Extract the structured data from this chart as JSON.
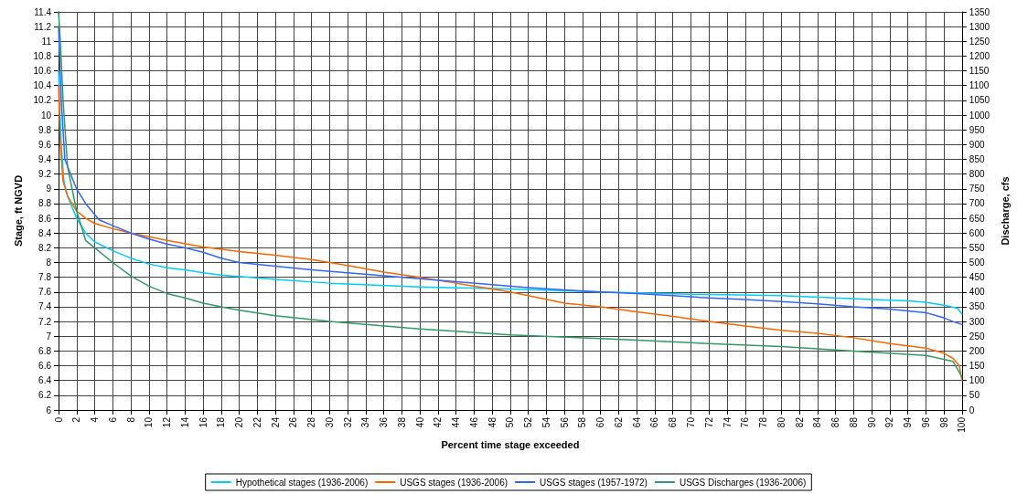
{
  "chart_data": {
    "type": "line",
    "xlabel": "Percent time stage exceeded",
    "ylabel": "Stage, ft NGVD",
    "y2label": "Discharge, cfs",
    "xlim": [
      0,
      100
    ],
    "xticks": [
      0,
      2,
      4,
      6,
      8,
      10,
      12,
      14,
      16,
      18,
      20,
      22,
      24,
      26,
      28,
      30,
      32,
      34,
      36,
      38,
      40,
      42,
      44,
      46,
      48,
      50,
      52,
      54,
      56,
      58,
      60,
      62,
      64,
      66,
      68,
      70,
      72,
      74,
      76,
      78,
      80,
      82,
      84,
      86,
      88,
      90,
      92,
      94,
      96,
      98,
      100
    ],
    "ylim": [
      6,
      11.4
    ],
    "yticks": [
      6,
      6.2,
      6.4,
      6.6,
      6.8,
      7,
      7.2,
      7.4,
      7.6,
      7.8,
      8,
      8.2,
      8.4,
      8.6,
      8.8,
      9,
      9.2,
      9.4,
      9.6,
      9.8,
      10,
      10.2,
      10.4,
      10.6,
      10.8,
      11,
      11.2,
      11.4
    ],
    "y2lim": [
      0,
      1350
    ],
    "y2ticks": [
      0,
      50,
      100,
      150,
      200,
      250,
      300,
      350,
      400,
      450,
      500,
      550,
      600,
      650,
      700,
      750,
      800,
      850,
      900,
      950,
      1000,
      1050,
      1100,
      1150,
      1200,
      1250,
      1300,
      1350
    ],
    "grid": true,
    "legend": "bottom",
    "marker": "none",
    "line_style": "solid",
    "series": [
      {
        "name": "Hypothetical stages (1936-2006)",
        "color": "#00ccff",
        "x": [
          0,
          0.3,
          0.6,
          1,
          2,
          3,
          4,
          5,
          6,
          8,
          10,
          12,
          14,
          16,
          18,
          20,
          24,
          30,
          40,
          50,
          60,
          70,
          80,
          86,
          90,
          94,
          96,
          98,
          99.5,
          100
        ],
        "values": [
          10.6,
          9.6,
          9.1,
          8.9,
          8.6,
          8.4,
          8.28,
          8.22,
          8.16,
          8.06,
          7.98,
          7.93,
          7.9,
          7.86,
          7.83,
          7.81,
          7.77,
          7.72,
          7.67,
          7.64,
          7.6,
          7.57,
          7.55,
          7.52,
          7.5,
          7.48,
          7.46,
          7.42,
          7.38,
          7.3
        ]
      },
      {
        "name": "USGS stages (1936-2006)",
        "color": "#ff6600",
        "x": [
          0,
          0.2,
          0.5,
          1,
          2,
          3,
          4,
          6,
          8,
          10,
          12,
          16,
          20,
          24,
          28,
          32,
          36,
          40,
          44,
          48,
          50,
          52,
          56,
          60,
          64,
          68,
          72,
          76,
          80,
          84,
          88,
          92,
          96,
          98,
          99,
          99.7,
          100
        ],
        "values": [
          10.4,
          9.6,
          9.1,
          8.9,
          8.7,
          8.6,
          8.53,
          8.46,
          8.4,
          8.35,
          8.3,
          8.21,
          8.15,
          8.1,
          8.04,
          7.96,
          7.87,
          7.8,
          7.72,
          7.64,
          7.6,
          7.55,
          7.45,
          7.4,
          7.33,
          7.27,
          7.2,
          7.14,
          7.08,
          7.04,
          6.98,
          6.9,
          6.84,
          6.77,
          6.7,
          6.6,
          6.4
        ]
      },
      {
        "name": "USGS stages (1957-1972)",
        "color": "#3366ff",
        "x": [
          0,
          0.3,
          0.7,
          1.5,
          2,
          3,
          4,
          4.5,
          6,
          8,
          10,
          12,
          14,
          16,
          18,
          20,
          24,
          28,
          32,
          36,
          40,
          44,
          48,
          52,
          56,
          60,
          64,
          68,
          72,
          76,
          80,
          84,
          88,
          92,
          96,
          98,
          99,
          100
        ],
        "values": [
          11.2,
          10.2,
          9.4,
          9.15,
          9,
          8.8,
          8.65,
          8.58,
          8.5,
          8.4,
          8.32,
          8.25,
          8.2,
          8.14,
          8.06,
          8,
          7.95,
          7.9,
          7.86,
          7.82,
          7.78,
          7.74,
          7.7,
          7.66,
          7.63,
          7.6,
          7.58,
          7.55,
          7.52,
          7.5,
          7.47,
          7.44,
          7.4,
          7.37,
          7.32,
          7.25,
          7.2,
          7.16
        ]
      },
      {
        "name": "USGS Discharges (1936-2006)",
        "color": "#339966",
        "axis": "y2",
        "x": [
          0,
          0.2,
          0.5,
          1,
          2,
          3,
          4,
          6,
          8,
          10,
          12,
          14,
          16,
          18,
          20,
          24,
          30,
          40,
          50,
          60,
          64,
          70,
          80,
          88,
          96,
          99,
          100
        ],
        "values": [
          1350,
          1250,
          1050,
          825,
          675,
          575,
          550,
          500,
          455,
          420,
          395,
          380,
          362,
          350,
          338,
          320,
          300,
          275,
          255,
          242,
          237,
          228,
          215,
          200,
          185,
          165,
          112
        ]
      }
    ]
  }
}
